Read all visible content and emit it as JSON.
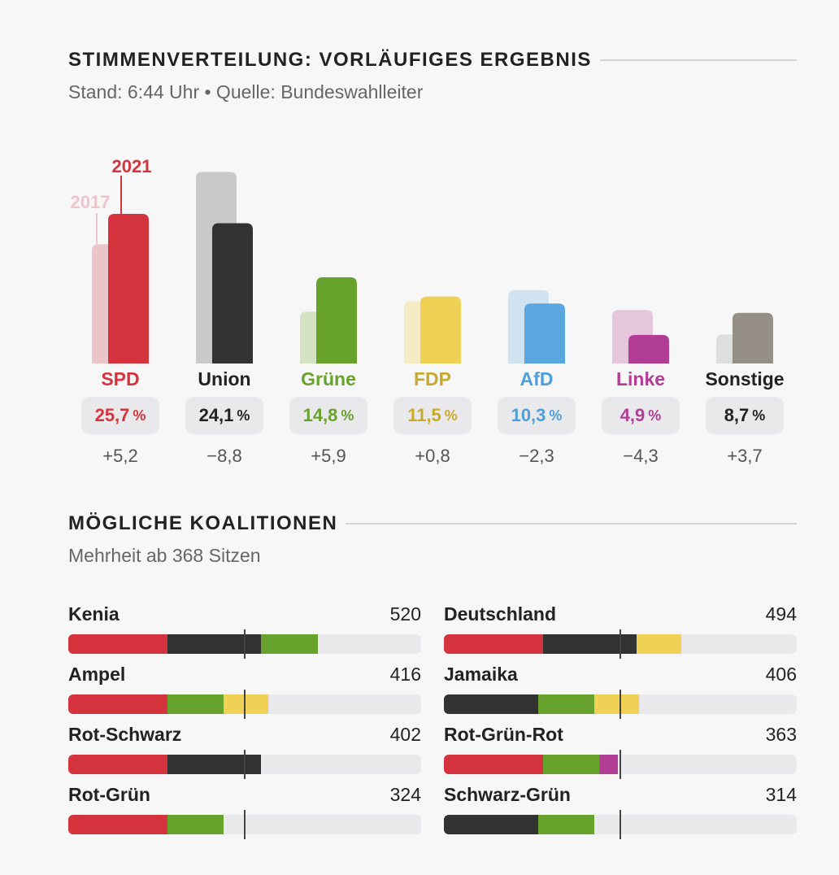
{
  "header": {
    "title": "STIMMENVERTEILUNG: VORLÄUFIGES ERGEBNIS",
    "subtitle": "Stand: 6:44 Uhr • Quelle: Bundeswahlleiter"
  },
  "chart_data": {
    "type": "bar",
    "year_labels": {
      "previous": "2017",
      "current": "2021"
    },
    "series": [
      {
        "name": "2017",
        "values": [
          20.5,
          32.9,
          8.9,
          10.7,
          12.6,
          9.2,
          5.0
        ]
      },
      {
        "name": "2021",
        "values": [
          25.7,
          24.1,
          14.8,
          11.5,
          10.3,
          4.9,
          8.7
        ]
      }
    ],
    "categories": [
      "SPD",
      "Union",
      "Grüne",
      "FDP",
      "AfD",
      "Linke",
      "Sonstige"
    ],
    "value_labels": [
      "25,7",
      "24,1",
      "14,8",
      "11,5",
      "10,3",
      "4,9",
      "8,7"
    ],
    "percent_symbol": "%",
    "deltas": [
      "+5,2",
      "−8,8",
      "+5,9",
      "+0,8",
      "−2,3",
      "−4,3",
      "+3,7"
    ],
    "colors": {
      "current": [
        "#d5333d",
        "#323232",
        "#67a32c",
        "#efd255",
        "#5aa6e0",
        "#b23d94",
        "#968f86"
      ],
      "previous": [
        "#ecc5ca",
        "#c9c9c9",
        "#d4e4c3",
        "#f5ecc5",
        "#cfe3f1",
        "#e6c6dd",
        "#dededd"
      ],
      "label": [
        "#d5333d",
        "#222222",
        "#67a32c",
        "#c8aa2a",
        "#4d9fd9",
        "#b23d94",
        "#222222"
      ]
    }
  },
  "coalitions_section": {
    "title": "MÖGLICHE KOALITIONEN",
    "subtitle": "Mehrheit ab 368 Sitzen",
    "majority": 368,
    "total_seats": 735,
    "items": [
      {
        "name": "Kenia",
        "seats": "520",
        "segments": [
          [
            "#d5333d",
            206
          ],
          [
            "#323232",
            196
          ],
          [
            "#67a32c",
            118
          ]
        ]
      },
      {
        "name": "Deutschland",
        "seats": "494",
        "segments": [
          [
            "#d5333d",
            206
          ],
          [
            "#323232",
            196
          ],
          [
            "#efd255",
            92
          ]
        ]
      },
      {
        "name": "Ampel",
        "seats": "416",
        "segments": [
          [
            "#d5333d",
            206
          ],
          [
            "#67a32c",
            118
          ],
          [
            "#efd255",
            92
          ]
        ]
      },
      {
        "name": "Jamaika",
        "seats": "406",
        "segments": [
          [
            "#323232",
            196
          ],
          [
            "#67a32c",
            118
          ],
          [
            "#efd255",
            92
          ]
        ]
      },
      {
        "name": "Rot-Schwarz",
        "seats": "402",
        "segments": [
          [
            "#d5333d",
            206
          ],
          [
            "#323232",
            196
          ]
        ]
      },
      {
        "name": "Rot-Grün-Rot",
        "seats": "363",
        "segments": [
          [
            "#d5333d",
            206
          ],
          [
            "#67a32c",
            118
          ],
          [
            "#b23d94",
            39
          ]
        ]
      },
      {
        "name": "Rot-Grün",
        "seats": "324",
        "segments": [
          [
            "#d5333d",
            206
          ],
          [
            "#67a32c",
            118
          ]
        ]
      },
      {
        "name": "Schwarz-Grün",
        "seats": "314",
        "segments": [
          [
            "#323232",
            196
          ],
          [
            "#67a32c",
            118
          ]
        ]
      }
    ]
  }
}
